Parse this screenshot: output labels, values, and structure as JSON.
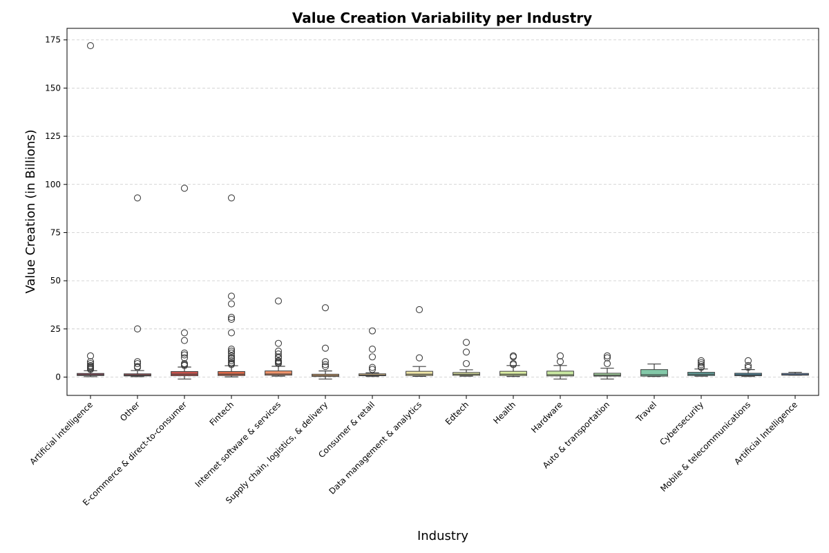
{
  "chart_data": {
    "type": "box",
    "title": "Value Creation Variability per Industry",
    "xlabel": "Industry",
    "ylabel": "Value Creation (in Billions)",
    "ylim": [
      -9.5,
      181
    ],
    "yticks": [
      0,
      25,
      50,
      75,
      100,
      125,
      150,
      175
    ],
    "grid": "y, dashed",
    "legend": "none",
    "categories": [
      "Artificial intelligence",
      "Other",
      "E-commerce & direct-to-consumer",
      "Fintech",
      "Internet software & services",
      "Supply chain, logistics, & delivery",
      "Consumer & retail",
      "Data management & analytics",
      "Edtech",
      "Health",
      "Hardware",
      "Auto & transportation",
      "Travel",
      "Cybersecurity",
      "Mobile & telecommunications",
      "Artificial Intelligence"
    ],
    "colors": [
      "#9b4f63",
      "#a8545c",
      "#c9544e",
      "#e06b4b",
      "#f0936a",
      "#f5bb7c",
      "#e8c68e",
      "#f1e8a8",
      "#e8f0a8",
      "#dcefa3",
      "#c9e8a2",
      "#a9dba4",
      "#83c8a8",
      "#67aea8",
      "#4f8ea8",
      "#5c82b4"
    ],
    "boxes": [
      {
        "whislo": 0.2,
        "q1": 0.8,
        "med": 1.2,
        "q3": 1.9,
        "whishi": 3.3,
        "fliers": [
          172,
          11,
          8,
          7,
          6,
          5.5,
          5,
          4.5,
          4
        ]
      },
      {
        "whislo": 0.2,
        "q1": 0.6,
        "med": 1.0,
        "q3": 1.7,
        "whishi": 3.4,
        "fliers": [
          93,
          25,
          8,
          7,
          5.5,
          5
        ]
      },
      {
        "whislo": -1.0,
        "q1": 0.7,
        "med": 1.5,
        "q3": 2.9,
        "whishi": 5.2,
        "fliers": [
          98,
          23,
          19,
          12.5,
          11.5,
          10,
          7,
          6.5,
          6
        ]
      },
      {
        "whislo": 0.1,
        "q1": 0.8,
        "med": 1.5,
        "q3": 2.9,
        "whishi": 5.9,
        "fliers": [
          93,
          42,
          38,
          31,
          30,
          23,
          14.5,
          13.5,
          12.5,
          11,
          10,
          9.5,
          8.5,
          7.5,
          7,
          6.5
        ]
      },
      {
        "whislo": 0.5,
        "q1": 1.0,
        "med": 1.6,
        "q3": 3.2,
        "whishi": 5.6,
        "fliers": [
          39.5,
          17.5,
          13.5,
          12,
          10.5,
          10,
          8.5,
          8,
          7.5,
          7
        ]
      },
      {
        "whislo": -1.0,
        "q1": 0.3,
        "med": 0.8,
        "q3": 1.5,
        "whishi": 3.2,
        "fliers": [
          36,
          15,
          8,
          6.5,
          5.5
        ]
      },
      {
        "whislo": 0.3,
        "q1": 0.7,
        "med": 1.0,
        "q3": 1.7,
        "whishi": 2.2,
        "fliers": [
          24,
          14.5,
          10.5,
          5,
          4
        ]
      },
      {
        "whislo": 0.4,
        "q1": 0.8,
        "med": 1.5,
        "q3": 3.0,
        "whishi": 5.5,
        "fliers": [
          35,
          10
        ]
      },
      {
        "whislo": 0.5,
        "q1": 0.9,
        "med": 1.5,
        "q3": 2.4,
        "whishi": 3.8,
        "fliers": [
          18,
          13,
          7
        ]
      },
      {
        "whislo": 0.3,
        "q1": 0.8,
        "med": 1.5,
        "q3": 3.0,
        "whishi": 6.0,
        "fliers": [
          11,
          10.5,
          7,
          6.5
        ]
      },
      {
        "whislo": -1.0,
        "q1": 0.6,
        "med": 1.2,
        "q3": 3.1,
        "whishi": 6.0,
        "fliers": [
          11,
          8
        ]
      },
      {
        "whislo": -1.0,
        "q1": 0.5,
        "med": 1.0,
        "q3": 2.0,
        "whishi": 4.6,
        "fliers": [
          11,
          10,
          7
        ]
      },
      {
        "whislo": 0.3,
        "q1": 0.5,
        "med": 1.2,
        "q3": 3.9,
        "whishi": 6.8,
        "fliers": []
      },
      {
        "whislo": 0.5,
        "q1": 0.8,
        "med": 1.5,
        "q3": 2.5,
        "whishi": 4.2,
        "fliers": [
          8.5,
          7.5,
          6.5,
          5.5,
          5
        ]
      },
      {
        "whislo": 0.3,
        "q1": 0.7,
        "med": 1.2,
        "q3": 2.0,
        "whishi": 3.9,
        "fliers": [
          8.5,
          6,
          5
        ]
      },
      {
        "whislo": 1.0,
        "q1": 1.0,
        "med": 1.2,
        "q3": 1.9,
        "whishi": 2.5,
        "fliers": []
      }
    ]
  }
}
